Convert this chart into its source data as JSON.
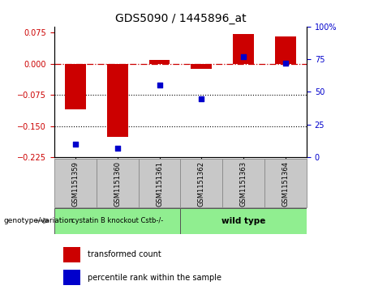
{
  "title": "GDS5090 / 1445896_at",
  "samples": [
    "GSM1151359",
    "GSM1151360",
    "GSM1151361",
    "GSM1151362",
    "GSM1151363",
    "GSM1151364"
  ],
  "red_values": [
    -0.11,
    -0.175,
    0.01,
    -0.012,
    0.072,
    0.065
  ],
  "blue_percentiles": [
    10,
    7,
    55,
    45,
    77,
    72
  ],
  "ylim_left": [
    -0.225,
    0.09
  ],
  "ylim_right": [
    0,
    100
  ],
  "yticks_left": [
    0.075,
    0,
    -0.075,
    -0.15,
    -0.225
  ],
  "yticks_right": [
    100,
    75,
    50,
    25,
    0
  ],
  "hlines_dotted": [
    -0.075,
    -0.15
  ],
  "hline_dashdot": 0,
  "group1_label": "cystatin B knockout Cstb-/-",
  "group2_label": "wild type",
  "group1_indices": [
    0,
    1,
    2
  ],
  "group2_indices": [
    3,
    4,
    5
  ],
  "group1_color": "#90EE90",
  "group2_color": "#90EE90",
  "xlabel_left": "genotype/variation",
  "legend_red": "transformed count",
  "legend_blue": "percentile rank within the sample",
  "bar_color": "#CC0000",
  "dot_color": "#0000CC",
  "bar_width": 0.5,
  "background_color": "#ffffff",
  "plot_bg": "#ffffff",
  "title_fontsize": 10,
  "tick_fontsize": 7,
  "sample_fontsize": 6,
  "label_fontsize": 7,
  "box_gray": "#C8C8C8"
}
